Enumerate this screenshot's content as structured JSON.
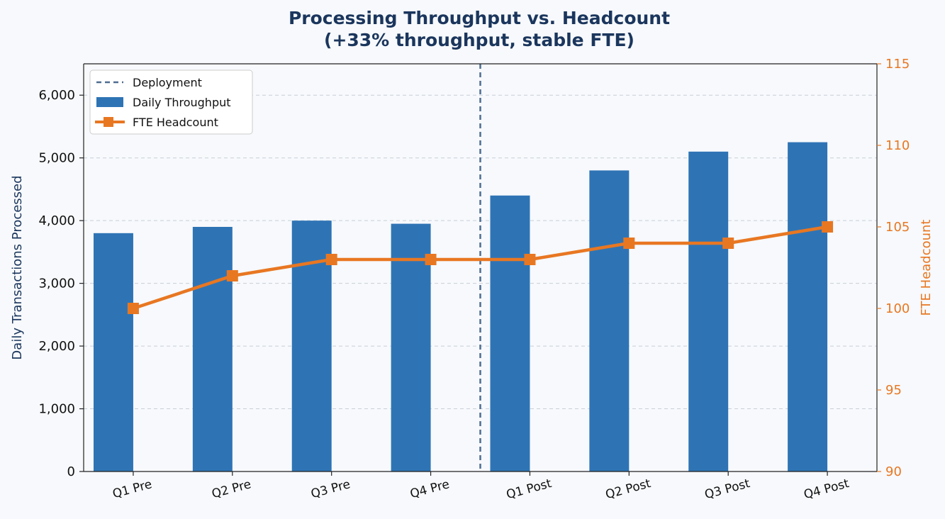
{
  "chart_data": {
    "type": "bar",
    "title_line1": "Processing Throughput vs. Headcount",
    "title_line2": "(+33% throughput, stable FTE)",
    "categories": [
      "Q1 Pre",
      "Q2 Pre",
      "Q3 Pre",
      "Q4 Pre",
      "Q1 Post",
      "Q2 Post",
      "Q3 Post",
      "Q4 Post"
    ],
    "series": [
      {
        "name": "Daily Throughput",
        "type": "bar",
        "axis": "left",
        "color": "#2e74b5",
        "values": [
          3800,
          3900,
          4000,
          3950,
          4400,
          4800,
          5100,
          5250
        ]
      },
      {
        "name": "FTE Headcount",
        "type": "line",
        "axis": "right",
        "color": "#e87722",
        "values": [
          100,
          102,
          103,
          103,
          103,
          104,
          104,
          105
        ]
      }
    ],
    "deployment": {
      "label": "Deployment",
      "after_category_index": 3,
      "color": "#4f6d91"
    },
    "left_axis": {
      "label": "Daily Transactions Processed",
      "ylim": [
        0,
        6500
      ],
      "ticks": [
        0,
        1000,
        2000,
        3000,
        4000,
        5000,
        6000
      ],
      "tick_labels": [
        "0",
        "1,000",
        "2,000",
        "3,000",
        "4,000",
        "5,000",
        "6,000"
      ],
      "label_color": "#1b365d"
    },
    "right_axis": {
      "label": "FTE Headcount",
      "ylim": [
        90,
        115
      ],
      "ticks": [
        90,
        95,
        100,
        105,
        110,
        115
      ],
      "tick_labels": [
        "90",
        "95",
        "100",
        "105",
        "110",
        "115"
      ],
      "color": "#e87722"
    },
    "grid": true,
    "legend_position": "top-left",
    "legend_entries": [
      "Deployment",
      "Daily Throughput",
      "FTE Headcount"
    ]
  }
}
